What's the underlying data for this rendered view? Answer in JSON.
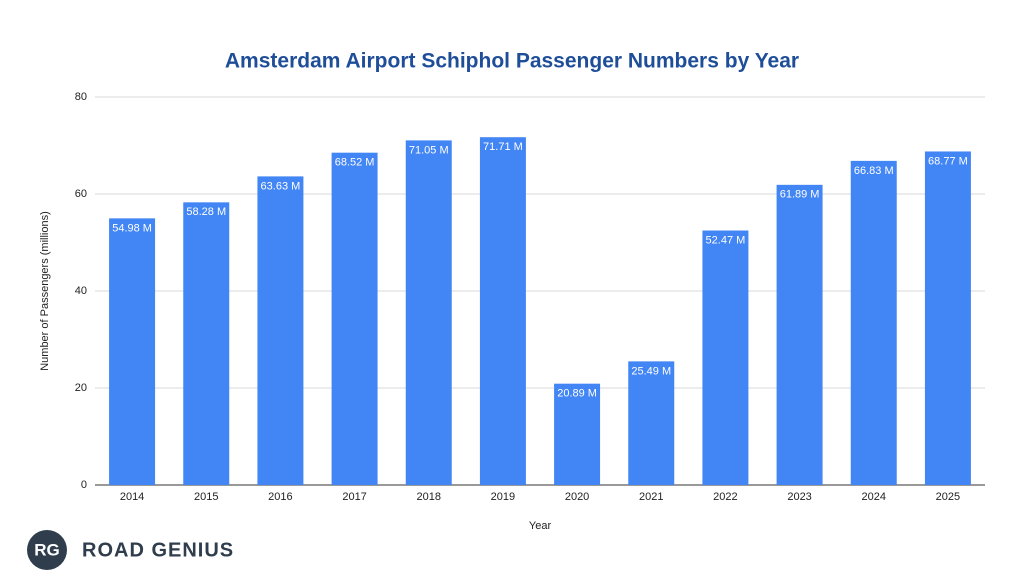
{
  "chart_data": {
    "type": "bar",
    "title": "Amsterdam Airport Schiphol Passenger Numbers by Year",
    "x_label": "Year",
    "y_label": "Number of Passengers (millions)",
    "categories": [
      "2014",
      "2015",
      "2016",
      "2017",
      "2018",
      "2019",
      "2020",
      "2021",
      "2022",
      "2023",
      "2024",
      "2025"
    ],
    "values": [
      54.98,
      58.28,
      63.63,
      68.52,
      71.05,
      71.71,
      20.89,
      25.49,
      52.47,
      61.89,
      66.83,
      68.77
    ],
    "value_labels": [
      "54.98 M",
      "58.28 M",
      "63.63 M",
      "68.52 M",
      "71.05 M",
      "71.71 M",
      "20.89 M",
      "25.49 M",
      "52.47 M",
      "61.89 M",
      "66.83 M",
      "68.77 M"
    ],
    "color": "#4285f4",
    "ylim": [
      0,
      80
    ],
    "yticks": [
      0,
      20,
      40,
      60,
      80
    ],
    "grid": true
  },
  "branding": {
    "mark": "RG",
    "name": "ROAD GENIUS"
  }
}
